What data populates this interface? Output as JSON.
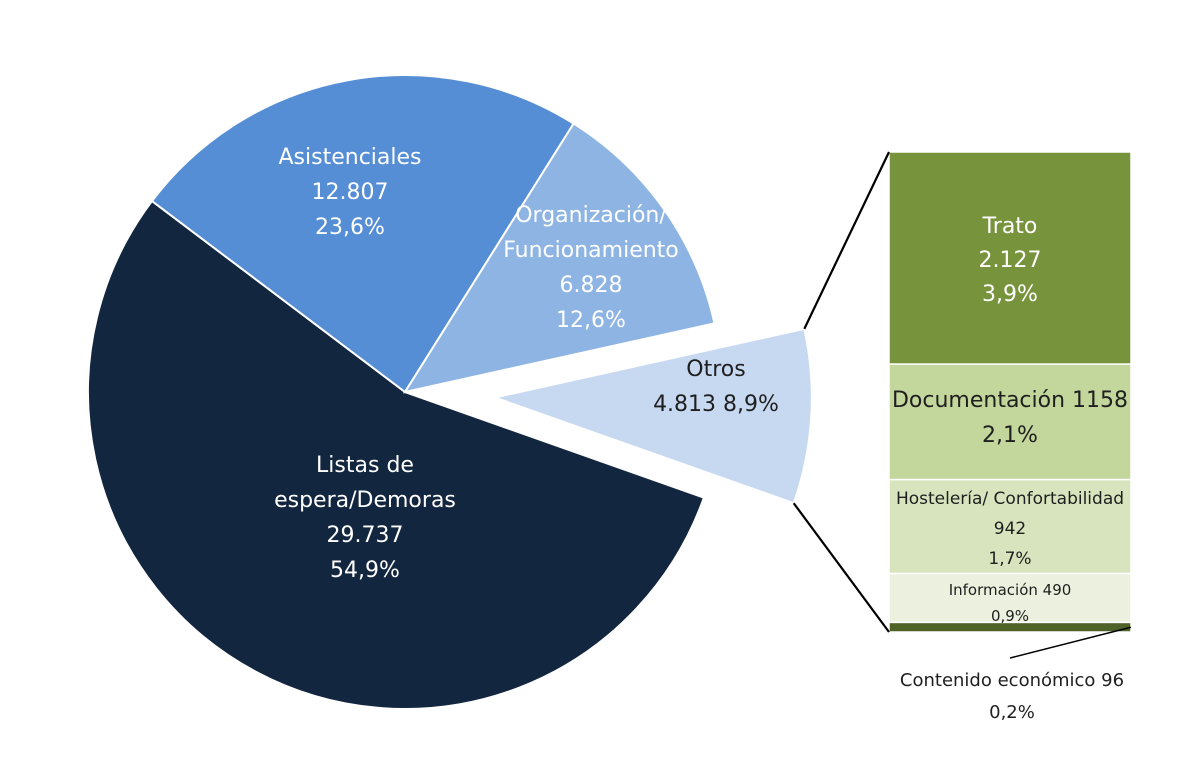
{
  "chart_data": [
    {
      "type": "pie",
      "title": "",
      "slices": [
        {
          "label_lines": [
            "Listas de",
            "espera/Demoras"
          ],
          "value_text": "29.737",
          "percent_text": "54,9%",
          "value": 29737,
          "percent": 54.9,
          "color": "#13263f",
          "text_color": "#ffffff"
        },
        {
          "label_lines": [
            "Asistenciales"
          ],
          "value_text": "12.807",
          "percent_text": "23,6%",
          "value": 12807,
          "percent": 23.6,
          "color": "#558ed5",
          "text_color": "#ffffff"
        },
        {
          "label_lines": [
            "Organización/",
            "Funcionamiento"
          ],
          "value_text": "6.828",
          "percent_text": "12,6%",
          "value": 6828,
          "percent": 12.6,
          "color": "#8eb4e3",
          "text_color": "#ffffff"
        },
        {
          "label_lines": [
            "Otros"
          ],
          "value_text": "4.813 8,9%",
          "percent_text": "",
          "value": 4813,
          "percent": 8.9,
          "color": "#c6d9f1",
          "text_color": "#1f1f1f",
          "exploded": true
        }
      ]
    },
    {
      "type": "bar",
      "stacked": true,
      "breakdown_of": "Otros",
      "segments": [
        {
          "label_lines": [
            "Trato"
          ],
          "value_text": "2.127",
          "percent_text": "3,9%",
          "value": 2127,
          "percent": 3.9,
          "color": "#77933c",
          "text_color": "#ffffff"
        },
        {
          "label_lines": [
            "Documentación 1158"
          ],
          "value_text": "",
          "percent_text": "2,1%",
          "value": 1158,
          "percent": 2.1,
          "color": "#c3d69b",
          "text_color": "#1f1f1f"
        },
        {
          "label_lines": [
            "Hostelería/ Confortabilidad"
          ],
          "value_text": "942",
          "percent_text": "1,7%",
          "value": 942,
          "percent": 1.7,
          "color": "#d7e4bd",
          "text_color": "#1f1f1f"
        },
        {
          "label_lines": [
            "Información 490"
          ],
          "value_text": "",
          "percent_text": "0,9%",
          "value": 490,
          "percent": 0.9,
          "color": "#ebf1de",
          "text_color": "#1f1f1f"
        },
        {
          "label_lines": [
            "Contenido  económico 96"
          ],
          "value_text": "",
          "percent_text": "0,2%",
          "value": 96,
          "percent": 0.2,
          "color": "#4f6228",
          "text_color": "#1f1f1f",
          "label_outside": true
        }
      ]
    }
  ]
}
